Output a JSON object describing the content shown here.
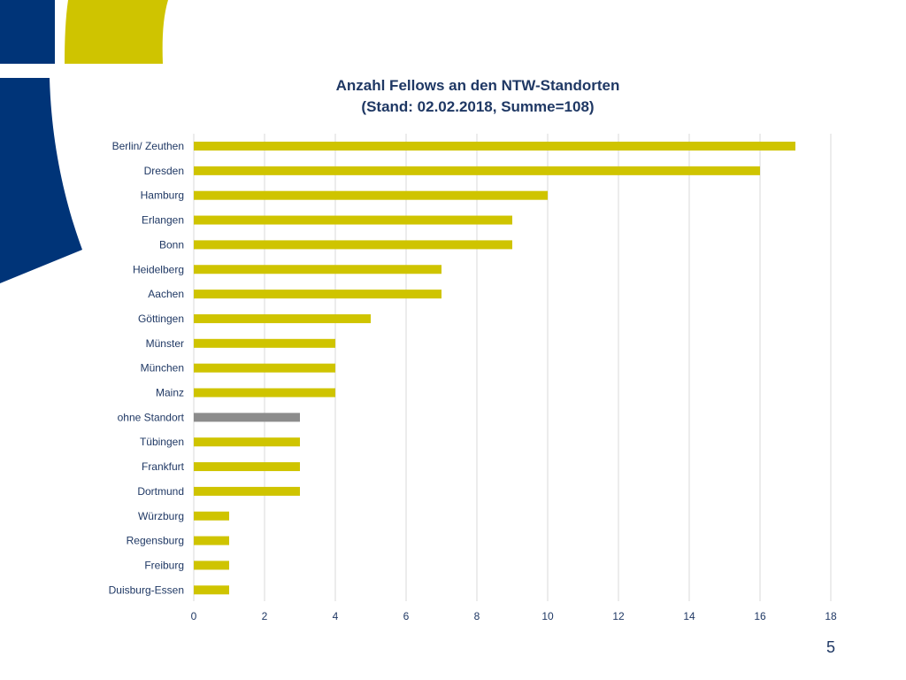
{
  "slide": {
    "page_number": "5",
    "logo": {
      "colors": {
        "navy": "#003478",
        "lime": "#cfc400"
      }
    }
  },
  "chart_data": {
    "type": "bar",
    "orientation": "horizontal",
    "title": "Anzahl Fellows an den NTW-Standorten",
    "subtitle": "(Stand: 02.02.2018, Summe=108)",
    "categories": [
      "Berlin/ Zeuthen",
      "Dresden",
      "Hamburg",
      "Erlangen",
      "Bonn",
      "Heidelberg",
      "Aachen",
      "Göttingen",
      "Münster",
      "München",
      "Mainz",
      "ohne Standort",
      "Tübingen",
      "Frankfurt",
      "Dortmund",
      "Würzburg",
      "Regensburg",
      "Freiburg",
      "Duisburg-Essen"
    ],
    "values": [
      17,
      16,
      10,
      9,
      9,
      7,
      7,
      5,
      4,
      4,
      4,
      3,
      3,
      3,
      3,
      1,
      1,
      1,
      1
    ],
    "bar_colors": [
      "#cfc400",
      "#cfc400",
      "#cfc400",
      "#cfc400",
      "#cfc400",
      "#cfc400",
      "#cfc400",
      "#cfc400",
      "#cfc400",
      "#cfc400",
      "#cfc400",
      "#8c8c8c",
      "#cfc400",
      "#cfc400",
      "#cfc400",
      "#cfc400",
      "#cfc400",
      "#cfc400",
      "#cfc400"
    ],
    "xlim": [
      0,
      18
    ],
    "xticks": [
      0,
      2,
      4,
      6,
      8,
      10,
      12,
      14,
      16,
      18
    ],
    "grid": "vertical",
    "legend": "none",
    "colors": {
      "text": "#1f3864",
      "grid": "#d9d9d9"
    }
  }
}
